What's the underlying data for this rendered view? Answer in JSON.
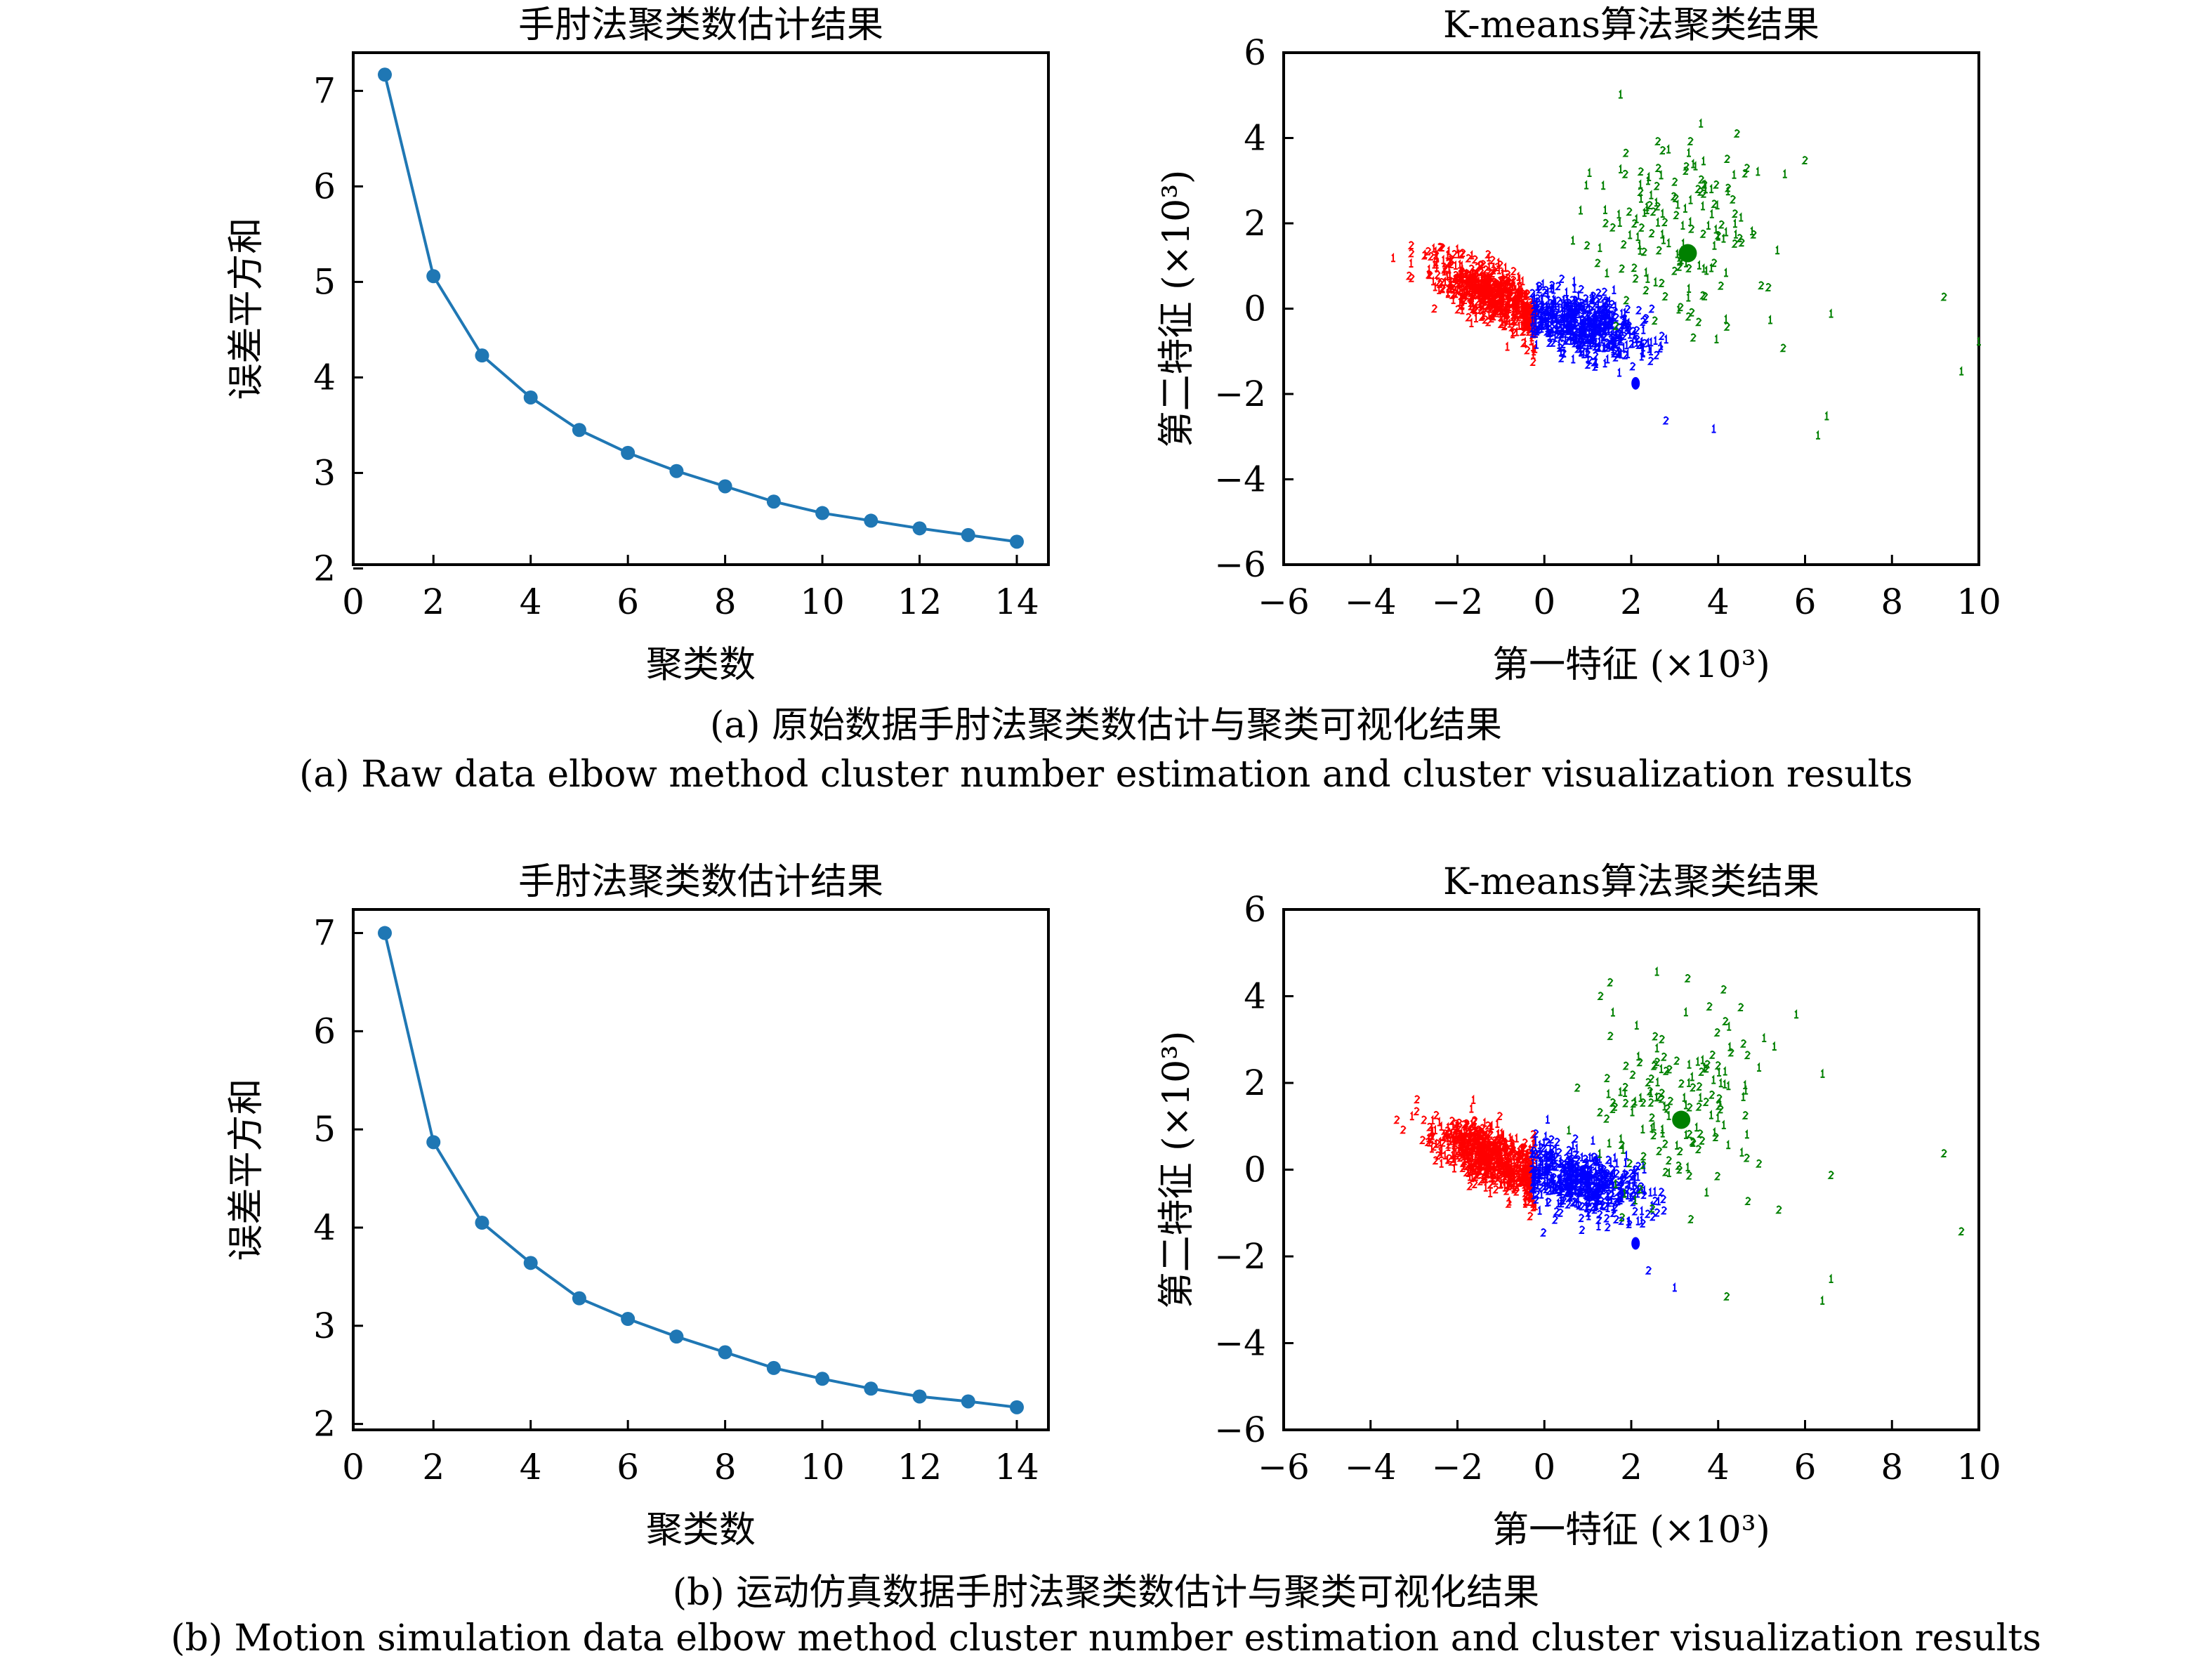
{
  "captions": {
    "a_cn": "(a) 原始数据手肘法聚类数估计与聚类可视化结果",
    "a_en": "(a) Raw data elbow method cluster number estimation and cluster visualization results",
    "b_cn": "(b) 运动仿真数据手肘法聚类数估计与聚类可视化结果",
    "b_en": "(b) Motion simulation data elbow method cluster number estimation and cluster visualization results"
  },
  "chart_data": [
    {
      "id": "a-elbow",
      "type": "line",
      "title": "手肘法聚类数估计结果",
      "xlabel": "聚类数",
      "ylabel": "误差平方和",
      "x": [
        1,
        2,
        3,
        4,
        5,
        6,
        7,
        8,
        9,
        10,
        11,
        12,
        13,
        14
      ],
      "y": [
        7.17,
        5.06,
        4.23,
        3.79,
        3.45,
        3.21,
        3.02,
        2.86,
        2.7,
        2.58,
        2.5,
        2.42,
        2.35,
        2.28
      ],
      "xlim": [
        0.35,
        14.65
      ],
      "ylim": [
        2.04,
        7.4
      ],
      "xticks": [
        0,
        2,
        4,
        6,
        8,
        10,
        12,
        14
      ],
      "yticks": [
        2,
        3,
        4,
        5,
        6,
        7
      ],
      "color": "#1f77b4"
    },
    {
      "id": "a-kmeans",
      "type": "scatter",
      "title": "K-means算法聚类结果",
      "xlabel": "第一特征 (×10³)",
      "ylabel": "第二特征 (×10³)",
      "xlim": [
        -6,
        10
      ],
      "ylim": [
        -6,
        6
      ],
      "xticks": [
        -6,
        -4,
        -2,
        0,
        2,
        4,
        6,
        8,
        10
      ],
      "yticks": [
        -6,
        -4,
        -2,
        0,
        2,
        4,
        6
      ],
      "clusters": [
        {
          "name": "cluster-red",
          "color": "#ff0000",
          "center": [
            -1.2,
            0.25
          ],
          "dir": [
            1,
            -0.55
          ],
          "sd": [
            0.75,
            0.28
          ],
          "n": 650
        },
        {
          "name": "cluster-blue",
          "color": "#0000ff",
          "center": [
            0.9,
            -0.45
          ],
          "dir": [
            1,
            -0.28
          ],
          "sd": [
            0.75,
            0.35
          ],
          "n": 520
        },
        {
          "name": "cluster-green",
          "color": "#008000",
          "center": [
            3.0,
            1.6
          ],
          "dir": [
            1,
            0
          ],
          "sd": [
            1.0,
            1.1
          ],
          "n": 160
        }
      ],
      "centroid": {
        "color": "#008000",
        "x": 3.3,
        "y": 1.3
      },
      "blue_blob": [
        2.1,
        -1.75
      ],
      "outliers": [
        [
          6.0,
          3.4,
          "#008000"
        ],
        [
          9.2,
          0.2,
          "#008000"
        ],
        [
          10.0,
          -0.85,
          "#008000"
        ],
        [
          9.6,
          -1.55,
          "#008000"
        ],
        [
          6.5,
          -2.6,
          "#008000"
        ],
        [
          6.3,
          -3.05,
          "#008000"
        ],
        [
          6.6,
          -0.2,
          "#008000"
        ],
        [
          5.5,
          -1.0,
          "#008000"
        ],
        [
          3.9,
          -2.9,
          "#0000ff"
        ],
        [
          2.8,
          -2.7,
          "#0000ff"
        ]
      ]
    },
    {
      "id": "b-elbow",
      "type": "line",
      "title": "手肘法聚类数估计结果",
      "xlabel": "聚类数",
      "ylabel": "误差平方和",
      "x": [
        1,
        2,
        3,
        4,
        5,
        6,
        7,
        8,
        9,
        10,
        11,
        12,
        13,
        14
      ],
      "y": [
        7.0,
        4.87,
        4.05,
        3.64,
        3.28,
        3.07,
        2.89,
        2.73,
        2.57,
        2.46,
        2.36,
        2.28,
        2.23,
        2.17
      ],
      "xlim": [
        0.35,
        14.65
      ],
      "ylim": [
        1.94,
        7.24
      ],
      "xticks": [
        0,
        2,
        4,
        6,
        8,
        10,
        12,
        14
      ],
      "yticks": [
        2,
        3,
        4,
        5,
        6,
        7
      ],
      "color": "#1f77b4"
    },
    {
      "id": "b-kmeans",
      "type": "scatter",
      "title": "K-means算法聚类结果",
      "xlabel": "第一特征 (×10³)",
      "ylabel": "第二特征 (×10³)",
      "xlim": [
        -6,
        10
      ],
      "ylim": [
        -6,
        6
      ],
      "xticks": [
        -6,
        -4,
        -2,
        0,
        2,
        4,
        6,
        8,
        10
      ],
      "yticks": [
        -6,
        -4,
        -2,
        0,
        2,
        4,
        6
      ],
      "clusters": [
        {
          "name": "cluster-red",
          "color": "#ff0000",
          "center": [
            -1.2,
            0.2
          ],
          "dir": [
            1,
            -0.5
          ],
          "sd": [
            0.75,
            0.3
          ],
          "n": 650
        },
        {
          "name": "cluster-blue",
          "color": "#0000ff",
          "center": [
            0.9,
            -0.4
          ],
          "dir": [
            1,
            -0.25
          ],
          "sd": [
            0.75,
            0.35
          ],
          "n": 520
        },
        {
          "name": "cluster-green",
          "color": "#008000",
          "center": [
            3.0,
            1.5
          ],
          "dir": [
            1,
            0
          ],
          "sd": [
            1.0,
            1.1
          ],
          "n": 160
        }
      ],
      "centroid": {
        "color": "#008000",
        "x": 3.15,
        "y": 1.15
      },
      "blue_blob": [
        2.1,
        -1.7
      ],
      "outliers": [
        [
          5.8,
          3.5,
          "#008000"
        ],
        [
          9.2,
          0.3,
          "#008000"
        ],
        [
          9.6,
          -1.5,
          "#008000"
        ],
        [
          6.6,
          -2.6,
          "#008000"
        ],
        [
          6.4,
          -3.1,
          "#008000"
        ],
        [
          6.6,
          -0.2,
          "#008000"
        ],
        [
          5.4,
          -1.0,
          "#008000"
        ],
        [
          4.2,
          -3.0,
          "#008000"
        ],
        [
          3.0,
          -2.8,
          "#0000ff"
        ],
        [
          2.4,
          -2.4,
          "#0000ff"
        ]
      ]
    }
  ]
}
